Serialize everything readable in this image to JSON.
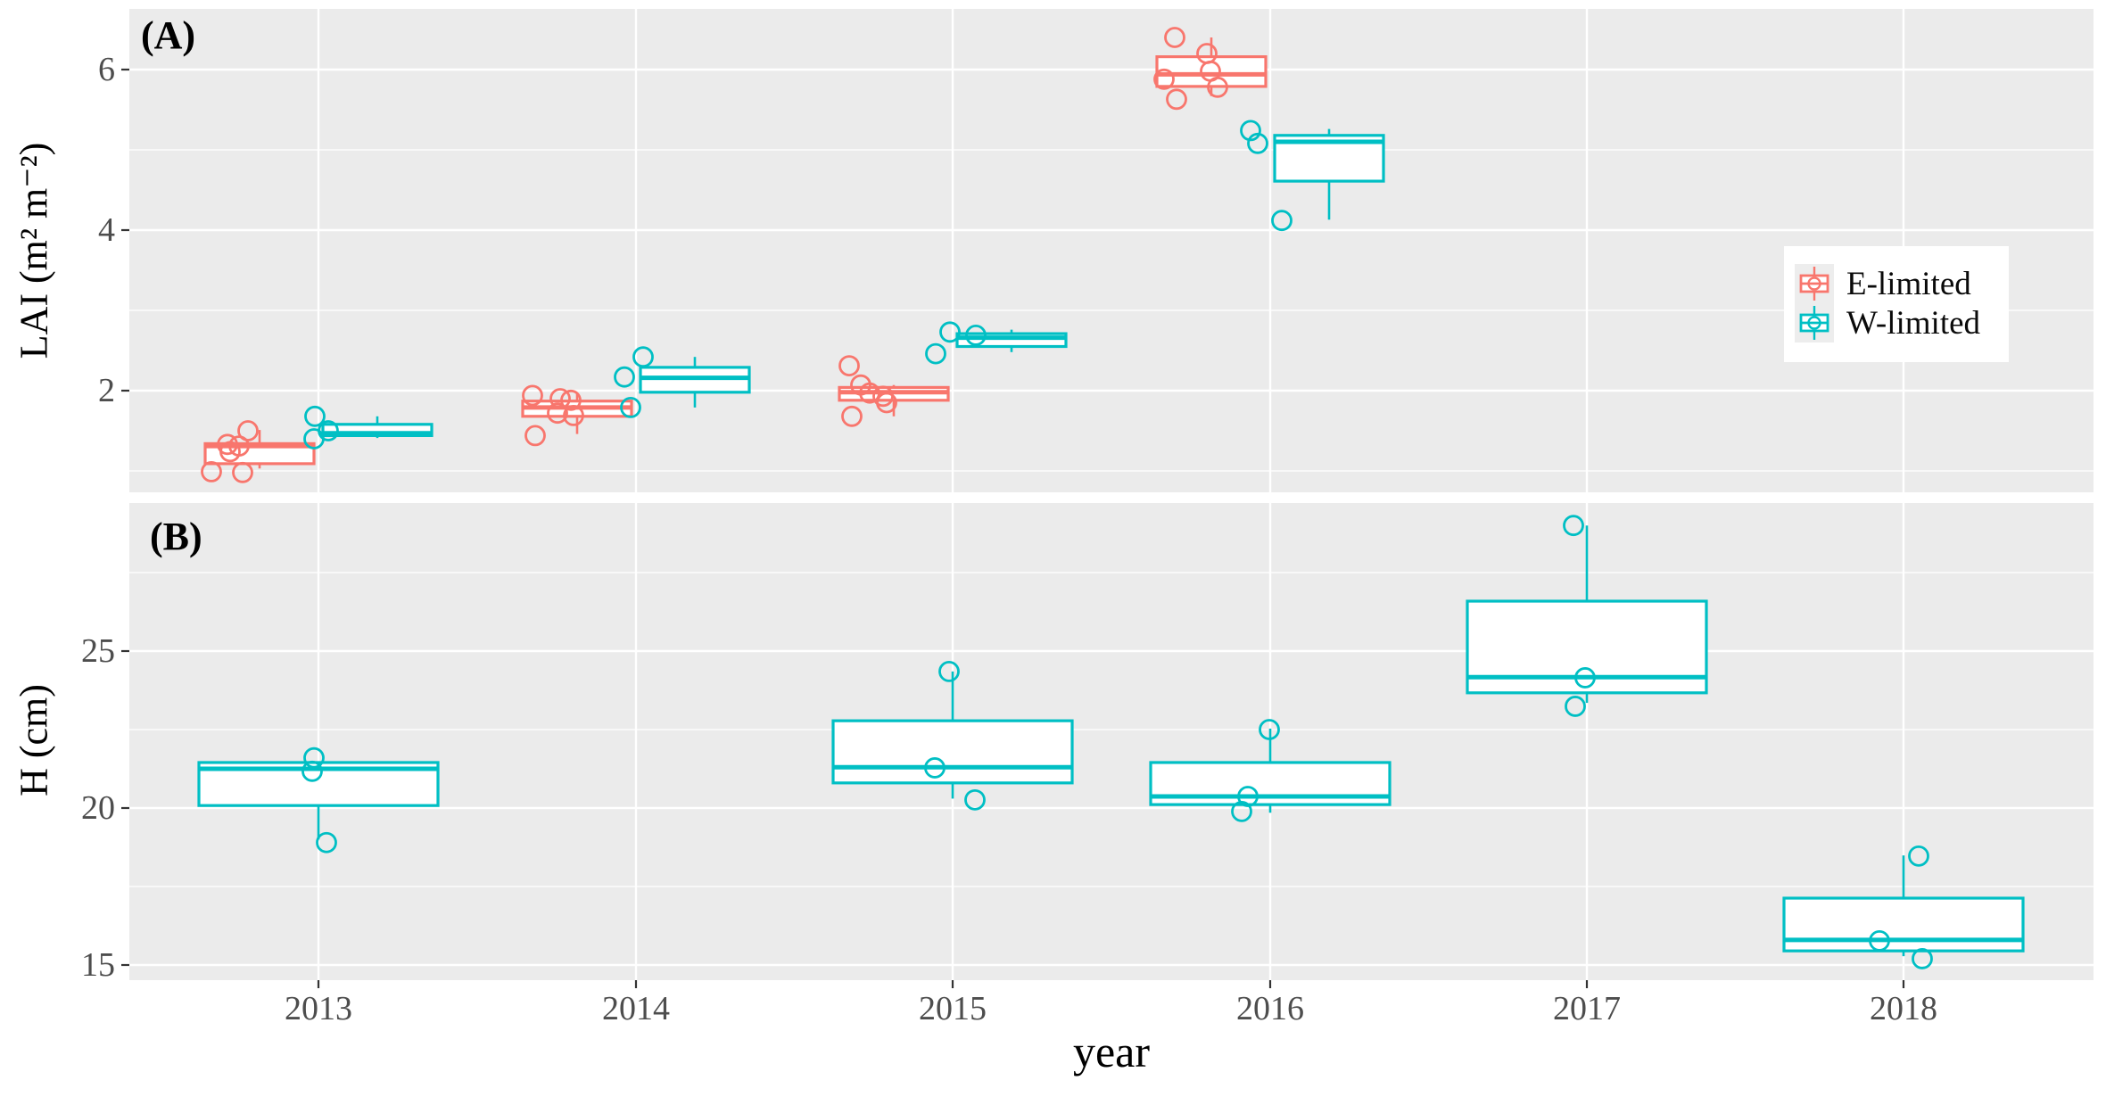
{
  "figure": {
    "xlabel": "year",
    "categories": [
      "2013",
      "2014",
      "2015",
      "2016",
      "2017",
      "2018"
    ],
    "legend": {
      "items": [
        {
          "label": "E-limited",
          "color": "#F8766D"
        },
        {
          "label": "W-limited",
          "color": "#00BFC4"
        }
      ]
    },
    "colors": {
      "e_limited": "#F8766D",
      "w_limited": "#00BFC4",
      "panel_bg": "#EBEBEB",
      "grid": "#FFFFFF",
      "box_fill": "#FFFFFF",
      "tick_text": "#4D4D4D",
      "tick_mark": "#333333",
      "text": "#000000",
      "legend_bg": "#FFFFFF",
      "legend_key_bg": "#EDEDED"
    }
  },
  "chart_data": [
    {
      "panel": "A",
      "label": "(A)",
      "type": "boxplot",
      "ylabel": "LAI (m² m⁻²)",
      "xcategories": [
        "2013",
        "2014",
        "2015",
        "2016",
        "2017",
        "2018"
      ],
      "yticks": [
        2,
        4,
        6
      ],
      "yminor": [
        1,
        3,
        5
      ],
      "ylim": [
        0.73,
        6.76
      ],
      "grid": true,
      "legend_position": "inside-right",
      "series": [
        {
          "name": "E-limited",
          "color": "#F8766D",
          "boxes": [
            {
              "year": "2013",
              "lo": 1.03,
              "q1": 1.09,
              "med": 1.31,
              "q3": 1.34,
              "hi": 1.51
            },
            {
              "year": "2014",
              "lo": 1.46,
              "q1": 1.68,
              "med": 1.79,
              "q3": 1.87,
              "hi": 1.96
            },
            {
              "year": "2015",
              "lo": 1.68,
              "q1": 1.88,
              "med": 1.98,
              "q3": 2.04,
              "hi": 2.07
            },
            {
              "year": "2016",
              "lo": 5.67,
              "q1": 5.79,
              "med": 5.94,
              "q3": 6.16,
              "hi": 6.4
            }
          ],
          "points": [
            {
              "year": "2013",
              "dx": -79,
              "v": 1.5
            },
            {
              "year": "2013",
              "dx": -102,
              "v": 1.33
            },
            {
              "year": "2013",
              "dx": -89,
              "v": 1.31
            },
            {
              "year": "2013",
              "dx": -99,
              "v": 1.24
            },
            {
              "year": "2013",
              "dx": -120,
              "v": 0.99
            },
            {
              "year": "2013",
              "dx": -85,
              "v": 0.98
            },
            {
              "year": "2014",
              "dx": -116,
              "v": 1.94
            },
            {
              "year": "2014",
              "dx": -85,
              "v": 1.9
            },
            {
              "year": "2014",
              "dx": -73,
              "v": 1.88
            },
            {
              "year": "2014",
              "dx": -88,
              "v": 1.72
            },
            {
              "year": "2014",
              "dx": -70,
              "v": 1.69
            },
            {
              "year": "2014",
              "dx": -113,
              "v": 1.44
            },
            {
              "year": "2015",
              "dx": -116,
              "v": 2.31
            },
            {
              "year": "2015",
              "dx": -103,
              "v": 2.07
            },
            {
              "year": "2015",
              "dx": -93,
              "v": 1.97
            },
            {
              "year": "2015",
              "dx": -78,
              "v": 1.93
            },
            {
              "year": "2015",
              "dx": -74,
              "v": 1.85
            },
            {
              "year": "2015",
              "dx": -113,
              "v": 1.68
            },
            {
              "year": "2016",
              "dx": -107,
              "v": 6.4
            },
            {
              "year": "2016",
              "dx": -71,
              "v": 6.2
            },
            {
              "year": "2016",
              "dx": -67,
              "v": 5.98
            },
            {
              "year": "2016",
              "dx": -119,
              "v": 5.88
            },
            {
              "year": "2016",
              "dx": -59,
              "v": 5.78
            },
            {
              "year": "2016",
              "dx": -105,
              "v": 5.63
            }
          ]
        },
        {
          "name": "W-limited",
          "color": "#00BFC4",
          "boxes": [
            {
              "year": "2013",
              "lo": 1.41,
              "q1": 1.44,
              "med": 1.47,
              "q3": 1.58,
              "hi": 1.68
            },
            {
              "year": "2014",
              "lo": 1.79,
              "q1": 1.98,
              "med": 2.16,
              "q3": 2.29,
              "hi": 2.42
            },
            {
              "year": "2015",
              "lo": 2.48,
              "q1": 2.55,
              "med": 2.66,
              "q3": 2.71,
              "hi": 2.76
            },
            {
              "year": "2016",
              "lo": 4.13,
              "q1": 4.61,
              "med": 5.1,
              "q3": 5.18,
              "hi": 5.26
            }
          ],
          "points": [
            {
              "year": "2013",
              "dx": -4,
              "v": 1.68
            },
            {
              "year": "2013",
              "dx": 11,
              "v": 1.5
            },
            {
              "year": "2013",
              "dx": -5,
              "v": 1.4
            },
            {
              "year": "2014",
              "dx": 8,
              "v": 2.42
            },
            {
              "year": "2014",
              "dx": -13,
              "v": 2.17
            },
            {
              "year": "2014",
              "dx": -6,
              "v": 1.79
            },
            {
              "year": "2015",
              "dx": -3,
              "v": 2.73
            },
            {
              "year": "2015",
              "dx": 26,
              "v": 2.69
            },
            {
              "year": "2015",
              "dx": -19,
              "v": 2.46
            },
            {
              "year": "2016",
              "dx": -22,
              "v": 5.24
            },
            {
              "year": "2016",
              "dx": -14,
              "v": 5.08
            },
            {
              "year": "2016",
              "dx": 13,
              "v": 4.12
            }
          ]
        }
      ]
    },
    {
      "panel": "B",
      "label": "(B)",
      "type": "boxplot",
      "ylabel": "H (cm)",
      "xcategories": [
        "2013",
        "2014",
        "2015",
        "2016",
        "2017",
        "2018"
      ],
      "yticks": [
        15,
        20,
        25
      ],
      "yminor": [
        17.5,
        22.5,
        27.5
      ],
      "ylim": [
        14.5,
        29.7
      ],
      "grid": true,
      "series": [
        {
          "name": "W-limited",
          "color": "#00BFC4",
          "boxes": [
            {
              "year": "2013",
              "lo": 19.0,
              "q1": 20.08,
              "med": 21.25,
              "q3": 21.45,
              "hi": 21.45
            },
            {
              "year": "2015",
              "lo": 20.3,
              "q1": 20.8,
              "med": 21.3,
              "q3": 22.78,
              "hi": 24.35
            },
            {
              "year": "2016",
              "lo": 19.85,
              "q1": 20.11,
              "med": 20.37,
              "q3": 21.45,
              "hi": 22.53
            },
            {
              "year": "2017",
              "lo": 23.35,
              "q1": 23.67,
              "med": 24.17,
              "q3": 26.59,
              "hi": 29.0
            },
            {
              "year": "2018",
              "lo": 15.28,
              "q1": 15.45,
              "med": 15.8,
              "q3": 17.13,
              "hi": 18.49
            }
          ],
          "points": [
            {
              "year": "2013",
              "dx": -5,
              "v": 21.6
            },
            {
              "year": "2013",
              "dx": -7,
              "v": 21.17
            },
            {
              "year": "2013",
              "dx": 9,
              "v": 18.9
            },
            {
              "year": "2015",
              "dx": -4,
              "v": 24.35
            },
            {
              "year": "2015",
              "dx": -20,
              "v": 21.28
            },
            {
              "year": "2015",
              "dx": 25,
              "v": 20.26
            },
            {
              "year": "2016",
              "dx": -1,
              "v": 22.5
            },
            {
              "year": "2016",
              "dx": -25,
              "v": 20.37
            },
            {
              "year": "2016",
              "dx": -32,
              "v": 19.89
            },
            {
              "year": "2017",
              "dx": -15,
              "v": 29.0
            },
            {
              "year": "2017",
              "dx": -2,
              "v": 24.15
            },
            {
              "year": "2017",
              "dx": -13,
              "v": 23.24
            },
            {
              "year": "2018",
              "dx": 17,
              "v": 18.47
            },
            {
              "year": "2018",
              "dx": -27,
              "v": 15.77
            },
            {
              "year": "2018",
              "dx": 21,
              "v": 15.2
            }
          ]
        }
      ]
    }
  ]
}
